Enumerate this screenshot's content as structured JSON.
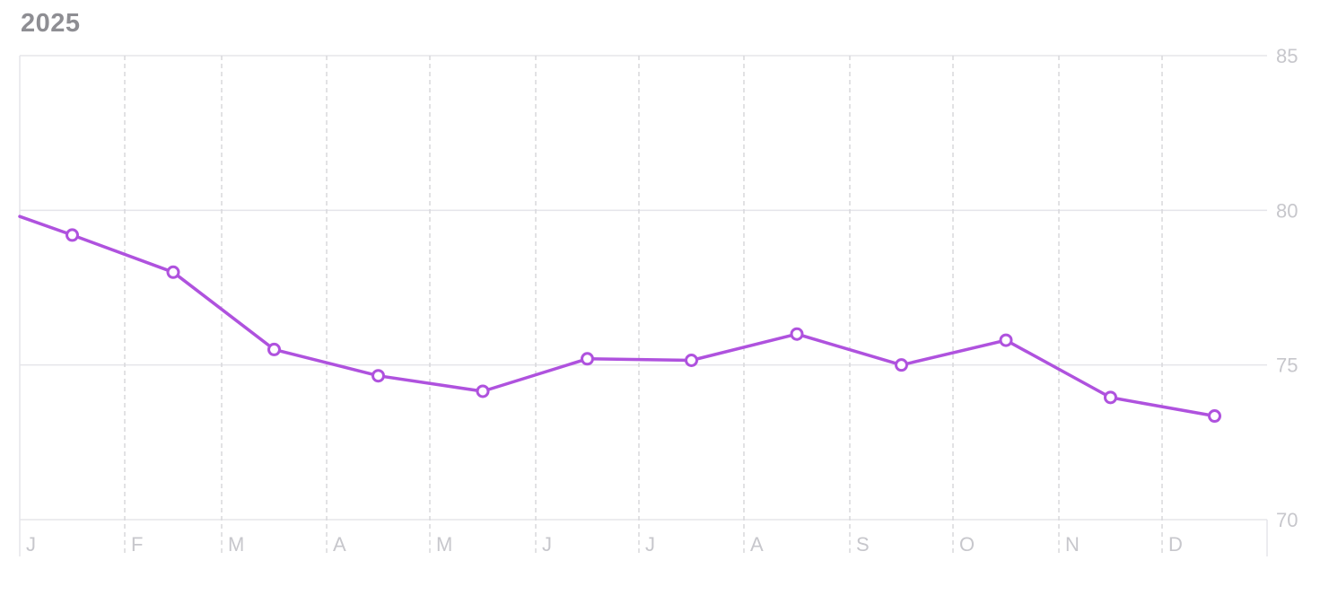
{
  "chart_data": {
    "type": "line",
    "title": "2025",
    "x_tick_labels": [
      "J",
      "F",
      "M",
      "A",
      "M",
      "J",
      "J",
      "A",
      "S",
      "O",
      "N",
      "D"
    ],
    "y_tick_labels": [
      "70",
      "75",
      "80",
      "85"
    ],
    "ylim": [
      70,
      85
    ],
    "grid": true,
    "line_start_value": 79.8,
    "series": [
      {
        "values": [
          79.2,
          78.0,
          75.5,
          74.65,
          74.15,
          75.2,
          75.15,
          76.0,
          75.0,
          75.8,
          73.95,
          73.35
        ]
      }
    ],
    "colors": {
      "line": "#af52de",
      "grid": "#e5e5ea",
      "tick_text": "#c7c7cc",
      "title": "#8e8e93"
    }
  }
}
